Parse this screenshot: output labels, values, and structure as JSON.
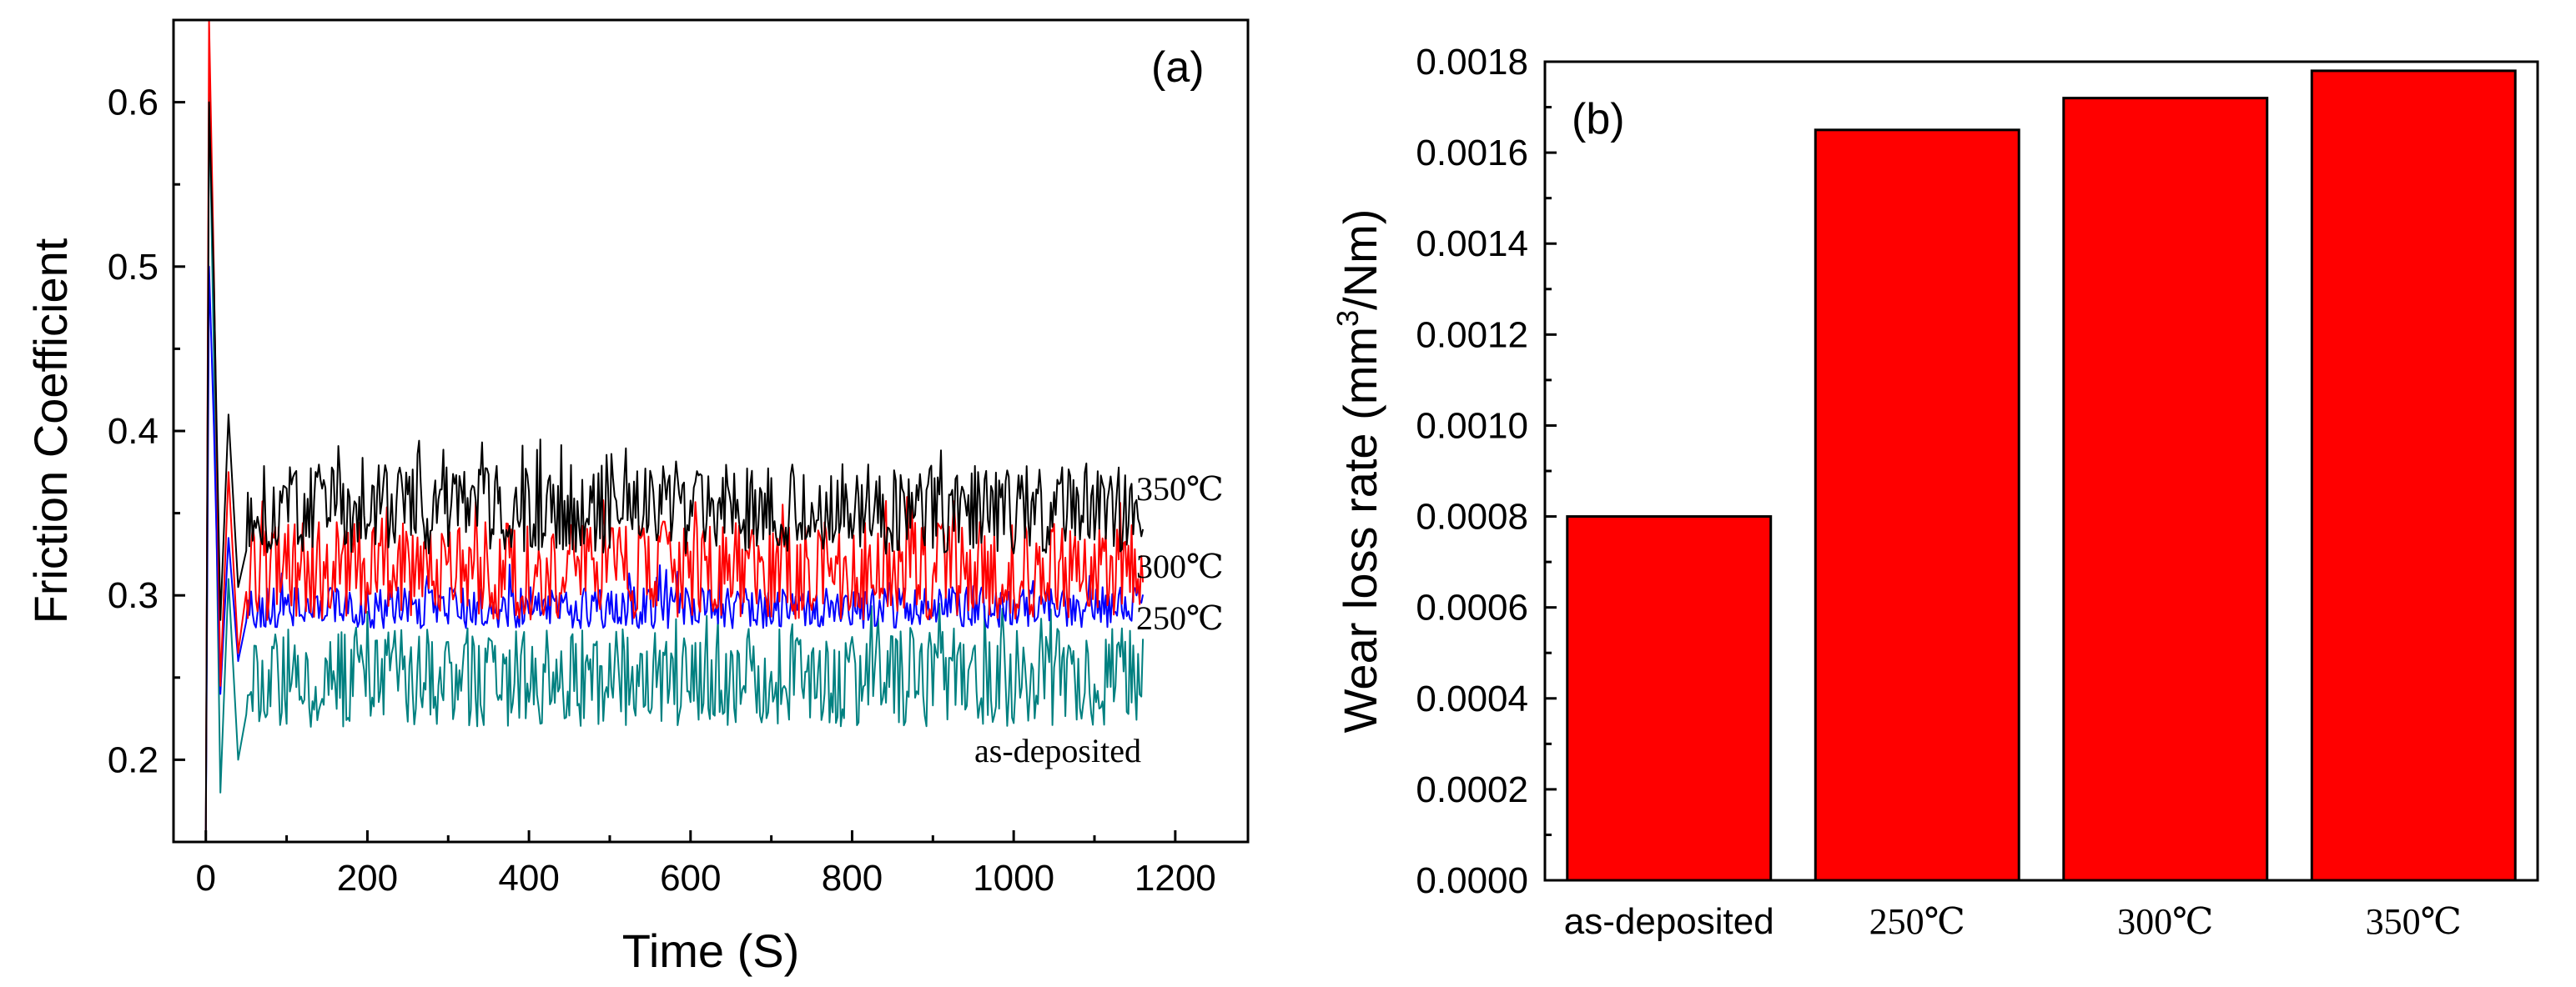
{
  "chart_data": [
    {
      "panel": "(a)",
      "type": "line",
      "xlabel": "Time (S)",
      "ylabel": "Friction Coefficient",
      "xlim": [
        -40,
        1290
      ],
      "ylim": [
        0.15,
        0.65
      ],
      "x_ticks": [
        0,
        200,
        400,
        600,
        800,
        1000,
        1200
      ],
      "y_ticks": [
        0.2,
        0.3,
        0.4,
        0.5,
        0.6
      ],
      "x_tick_labels": [
        "0",
        "200",
        "400",
        "600",
        "800",
        "1000",
        "1200"
      ],
      "y_tick_labels": [
        "0.2",
        "0.3",
        "0.4",
        "0.5",
        "0.6"
      ],
      "series": [
        {
          "name": "as-deposited",
          "color": "#008080",
          "x_end": 1160,
          "steady_low": 0.22,
          "steady_high": 0.28,
          "peak": 0.61
        },
        {
          "name": "250℃",
          "color": "#0000ff",
          "x_end": 1160,
          "steady_low": 0.28,
          "steady_high": 0.305,
          "peak": 0.5
        },
        {
          "name": "300℃",
          "color": "#ff0000",
          "x_end": 1160,
          "steady_low": 0.285,
          "steady_high": 0.345,
          "peak": 0.65
        },
        {
          "name": "350℃",
          "color": "#000000",
          "x_end": 1160,
          "steady_low": 0.325,
          "steady_high": 0.38,
          "peak": 0.6
        }
      ]
    },
    {
      "panel": "(b)",
      "type": "bar",
      "ylabel_main": "Wear loss rate (mm",
      "ylabel_sup": "3",
      "ylabel_tail": "/Nm)",
      "ylim": [
        0,
        0.0018
      ],
      "y_ticks": [
        0,
        0.0002,
        0.0004,
        0.0006,
        0.0008,
        0.001,
        0.0012,
        0.0014,
        0.0016,
        0.0018
      ],
      "y_tick_labels": [
        "0.0000",
        "0.0002",
        "0.0004",
        "0.0006",
        "0.0008",
        "0.0010",
        "0.0012",
        "0.0014",
        "0.0016",
        "0.0018"
      ],
      "categories": [
        "as-deposited",
        "250℃",
        "300℃",
        "350℃"
      ],
      "values": [
        0.0008,
        0.00165,
        0.00172,
        0.00178
      ],
      "bar_color": "#ff0000"
    }
  ]
}
